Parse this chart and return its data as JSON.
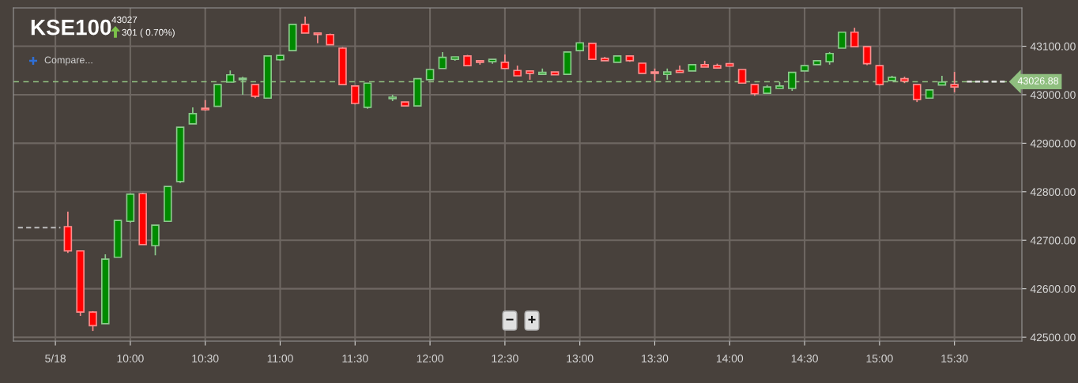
{
  "chart_data": {
    "type": "candlestick",
    "title": "KSE100",
    "subtitle": "43027",
    "annotations": [
      "301 ( 0.70%)",
      "Compare...",
      "−",
      "+"
    ],
    "x": [
      9.5833,
      9.6667,
      9.75,
      9.8333,
      9.9167,
      10,
      10.0833,
      10.1667,
      10.25,
      10.3333,
      10.4167,
      10.5,
      10.5833,
      10.6667,
      10.75,
      10.8333,
      10.9167,
      11,
      11.0833,
      11.1667,
      11.25,
      11.3333,
      11.4167,
      11.5,
      11.5833,
      11.75,
      11.8333,
      11.9167,
      12,
      12.0833,
      12.1667,
      12.25,
      12.3333,
      12.4167,
      12.5,
      12.5833,
      12.6667,
      12.75,
      12.8333,
      12.9167,
      13,
      13.0833,
      13.1667,
      13.25,
      13.3333,
      13.4167,
      13.5,
      13.5833,
      13.6667,
      13.75,
      13.8333,
      13.9167,
      14,
      14.0833,
      14.1667,
      14.25,
      14.3333,
      14.4167,
      14.5,
      14.5833,
      14.6667,
      14.75,
      14.8333,
      14.9167,
      15,
      15.0833,
      15.1667,
      15.25,
      15.3333,
      15.4167,
      15.5
    ],
    "ohlc": [
      [
        42728,
        42759,
        42674,
        42678
      ],
      [
        42678,
        42678,
        42544,
        42552
      ],
      [
        42552,
        42554,
        42513,
        42524
      ],
      [
        42528,
        42671,
        42528,
        42661
      ],
      [
        42665,
        42741,
        42665,
        42741
      ],
      [
        42739,
        42795,
        42736,
        42795
      ],
      [
        42796,
        42798,
        42691,
        42691
      ],
      [
        42689,
        42731,
        42669,
        42731
      ],
      [
        42739,
        42811,
        42739,
        42811
      ],
      [
        42821,
        42933,
        42818,
        42933
      ],
      [
        42940,
        42974,
        42940,
        42961
      ],
      [
        42972,
        42989,
        42967,
        42969
      ],
      [
        42976,
        43021,
        42976,
        43021
      ],
      [
        43026,
        43050,
        43026,
        43041
      ],
      [
        43031,
        43037,
        43000,
        43034
      ],
      [
        43021,
        43021,
        42993,
        42997
      ],
      [
        42993,
        43080,
        42993,
        43080
      ],
      [
        43072,
        43081,
        43070,
        43081
      ],
      [
        43091,
        43145,
        43091,
        43145
      ],
      [
        43145,
        43161,
        43127,
        43127
      ],
      [
        43127,
        43127,
        43106,
        43124
      ],
      [
        43124,
        43126,
        43103,
        43103
      ],
      [
        43096,
        43098,
        43021,
        43021
      ],
      [
        43018,
        43018,
        42980,
        42982
      ],
      [
        42974,
        43024,
        42971,
        43024
      ],
      [
        42992,
        43000,
        42987,
        42995
      ],
      [
        42985,
        42985,
        42977,
        42977
      ],
      [
        42977,
        43033,
        42977,
        43033
      ],
      [
        43031,
        43052,
        43031,
        43052
      ],
      [
        43054,
        43088,
        43054,
        43077
      ],
      [
        43073,
        43078,
        43070,
        43078
      ],
      [
        43080,
        43082,
        43060,
        43060
      ],
      [
        43070,
        43070,
        43062,
        43067
      ],
      [
        43068,
        43073,
        43064,
        43073
      ],
      [
        43067,
        43083,
        43054,
        43054
      ],
      [
        43050,
        43060,
        43039,
        43039
      ],
      [
        43049,
        43049,
        43031,
        43044
      ],
      [
        43042,
        43054,
        43042,
        43046
      ],
      [
        43047,
        43047,
        43041,
        43041
      ],
      [
        43042,
        43088,
        43042,
        43088
      ],
      [
        43091,
        43107,
        43091,
        43107
      ],
      [
        43106,
        43106,
        43073,
        43073
      ],
      [
        43075,
        43078,
        43070,
        43070
      ],
      [
        43067,
        43080,
        43067,
        43080
      ],
      [
        43080,
        43080,
        43068,
        43070
      ],
      [
        43065,
        43065,
        43044,
        43044
      ],
      [
        43047,
        43054,
        43028,
        43044
      ],
      [
        43042,
        43054,
        43031,
        43047
      ],
      [
        43050,
        43060,
        43046,
        43046
      ],
      [
        43049,
        43062,
        43049,
        43062
      ],
      [
        43062,
        43070,
        43057,
        43057
      ],
      [
        43060,
        43064,
        43055,
        43055
      ],
      [
        43064,
        43064,
        43059,
        43059
      ],
      [
        43052,
        43052,
        43024,
        43024
      ],
      [
        43021,
        43021,
        42998,
        43002
      ],
      [
        43003,
        43020,
        43003,
        43016
      ],
      [
        43013,
        43026,
        43013,
        43018
      ],
      [
        43013,
        43046,
        43008,
        43046
      ],
      [
        43049,
        43060,
        43049,
        43060
      ],
      [
        43062,
        43070,
        43062,
        43070
      ],
      [
        43068,
        43088,
        43062,
        43085
      ],
      [
        43096,
        43129,
        43096,
        43129
      ],
      [
        43129,
        43138,
        43099,
        43099
      ],
      [
        43099,
        43099,
        43061,
        43064
      ],
      [
        43060,
        43060,
        43019,
        43021
      ],
      [
        43029,
        43039,
        43029,
        43036
      ],
      [
        43033,
        43037,
        43024,
        43028
      ],
      [
        43021,
        43021,
        42985,
        42990
      ],
      [
        42993,
        43010,
        42993,
        43010
      ],
      [
        43020,
        43039,
        43020,
        43026
      ],
      [
        43021,
        43047,
        43005,
        43016
      ]
    ],
    "colors": [
      "#ff0000",
      "#ff0000",
      "#ff0000",
      "#008a00",
      "#008a00",
      "#008a00",
      "#ff0000",
      "#008a00",
      "#008a00",
      "#008a00",
      "#008a00",
      "#ff0000",
      "#008a00",
      "#008a00",
      "#008a00",
      "#ff0000",
      "#008a00",
      "#008a00",
      "#008a00",
      "#ff0000",
      "#ff0000",
      "#ff0000",
      "#ff0000",
      "#ff0000",
      "#008a00",
      "#008a00",
      "#ff0000",
      "#008a00",
      "#008a00",
      "#008a00",
      "#008a00",
      "#ff0000",
      "#ff0000",
      "#008a00",
      "#ff0000",
      "#ff0000",
      "#ff0000",
      "#008a00",
      "#ff0000",
      "#008a00",
      "#008a00",
      "#ff0000",
      "#ff0000",
      "#008a00",
      "#ff0000",
      "#ff0000",
      "#ff0000",
      "#008a00",
      "#ff0000",
      "#008a00",
      "#ff0000",
      "#ff0000",
      "#ff0000",
      "#ff0000",
      "#ff0000",
      "#008a00",
      "#008a00",
      "#008a00",
      "#008a00",
      "#008a00",
      "#008a00",
      "#008a00",
      "#ff0000",
      "#ff0000",
      "#ff0000",
      "#008a00",
      "#ff0000",
      "#ff0000",
      "#008a00",
      "#008a00",
      "#ff0000"
    ],
    "series": [
      {
        "type": "line",
        "x": [
          9.25,
          9.5333
        ],
        "values": [
          42726,
          42726
        ],
        "color": "#bdbdbd",
        "line_style": "dashed"
      },
      {
        "type": "line",
        "x": [
          15.5833,
          15.85
        ],
        "values": [
          43027,
          43027
        ],
        "color": "#e8e8e8",
        "line_style": "dashed"
      }
    ],
    "ref_lines": [
      {
        "axis": "y",
        "value": 43026.88,
        "label": "43026.88",
        "color": "#8fbf7f",
        "line_style": "dashed"
      }
    ],
    "xlim": [
      9.22,
      15.95
    ],
    "xticks": [
      {
        "value": 9.5,
        "label": "5/18"
      },
      {
        "value": 10,
        "label": "10:00"
      },
      {
        "value": 10.5,
        "label": "10:30"
      },
      {
        "value": 11,
        "label": "11:00"
      },
      {
        "value": 11.5,
        "label": "11:30"
      },
      {
        "value": 12,
        "label": "12:00"
      },
      {
        "value": 12.5,
        "label": "12:30"
      },
      {
        "value": 13,
        "label": "13:00"
      },
      {
        "value": 13.5,
        "label": "13:30"
      },
      {
        "value": 14,
        "label": "14:00"
      },
      {
        "value": 14.5,
        "label": "14:30"
      },
      {
        "value": 15,
        "label": "15:00"
      },
      {
        "value": 15.5,
        "label": "15:30"
      }
    ],
    "ylim": [
      42492,
      43179
    ],
    "yticks": [
      {
        "value": 42500,
        "label": "42500.00"
      },
      {
        "value": 42600,
        "label": "42600.00"
      },
      {
        "value": 42700,
        "label": "42700.00"
      },
      {
        "value": 42800,
        "label": "42800.00"
      },
      {
        "value": 42900,
        "label": "42900.00"
      },
      {
        "value": 43000,
        "label": "43000.00"
      },
      {
        "value": 43100,
        "label": "43100.00"
      }
    ],
    "grid": true
  }
}
